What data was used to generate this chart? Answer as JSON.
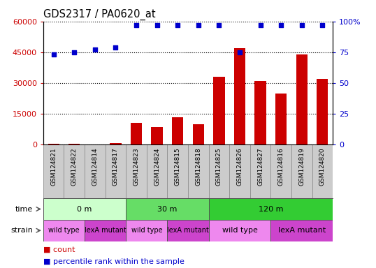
{
  "title": "GDS2317 / PA0620_at",
  "samples": [
    "GSM124821",
    "GSM124822",
    "GSM124814",
    "GSM124817",
    "GSM124823",
    "GSM124824",
    "GSM124815",
    "GSM124818",
    "GSM124825",
    "GSM124826",
    "GSM124827",
    "GSM124816",
    "GSM124819",
    "GSM124820"
  ],
  "counts": [
    300,
    600,
    250,
    700,
    10500,
    8500,
    13500,
    10000,
    33000,
    47000,
    31000,
    25000,
    44000,
    32000
  ],
  "percentile": [
    73,
    75,
    77,
    79,
    97,
    97,
    97,
    97,
    97,
    75,
    97,
    97,
    97,
    97
  ],
  "bar_color": "#cc0000",
  "dot_color": "#0000cc",
  "ylim_left": [
    0,
    60000
  ],
  "ylim_right": [
    0,
    100
  ],
  "yticks_left": [
    0,
    15000,
    30000,
    45000,
    60000
  ],
  "yticks_right": [
    0,
    25,
    50,
    75,
    100
  ],
  "time_groups": [
    {
      "label": "0 m",
      "start": 0,
      "end": 4,
      "color": "#ccffcc"
    },
    {
      "label": "30 m",
      "start": 4,
      "end": 8,
      "color": "#66dd66"
    },
    {
      "label": "120 m",
      "start": 8,
      "end": 14,
      "color": "#33cc33"
    }
  ],
  "strain_groups": [
    {
      "label": "wild type",
      "start": 0,
      "end": 2,
      "color": "#ee88ee"
    },
    {
      "label": "lexA mutant",
      "start": 2,
      "end": 4,
      "color": "#cc44cc"
    },
    {
      "label": "wild type",
      "start": 4,
      "end": 6,
      "color": "#ee88ee"
    },
    {
      "label": "lexA mutant",
      "start": 6,
      "end": 8,
      "color": "#cc44cc"
    },
    {
      "label": "wild type",
      "start": 8,
      "end": 11,
      "color": "#ee88ee"
    },
    {
      "label": "lexA mutant",
      "start": 11,
      "end": 14,
      "color": "#cc44cc"
    }
  ],
  "legend_count_color": "#cc0000",
  "legend_pct_color": "#0000cc",
  "tick_label_color_left": "#cc0000",
  "tick_label_color_right": "#0000cc",
  "xlabel_bg": "#cccccc",
  "background_color": "#ffffff"
}
